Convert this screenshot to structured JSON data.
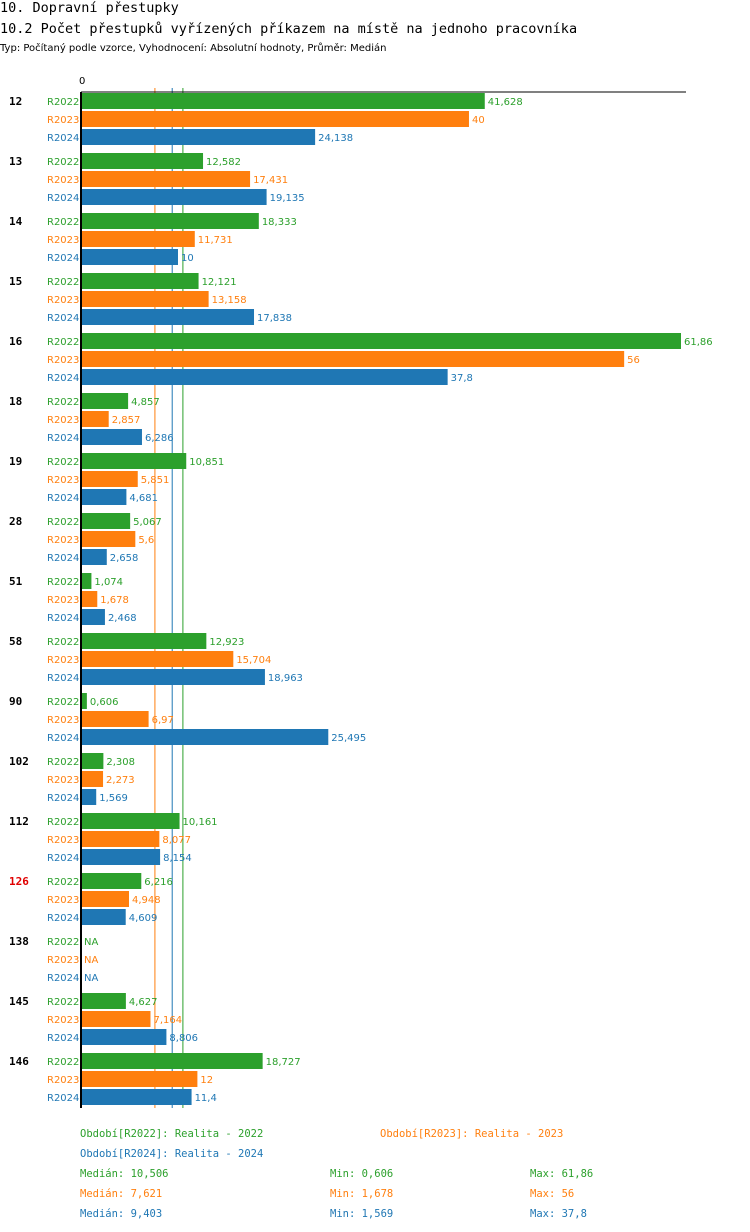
{
  "header": {
    "section": "10. Dopravní přestupky",
    "title": "10.2 Počet přestupků vyřízených příkazem na místě na jednoho pracovníka",
    "subtitle": "Typ: Počítaný podle vzorce, Vyhodnocení: Absolutní hodnoty, Průměr: Medián"
  },
  "chart_data": {
    "type": "bar",
    "orientation": "horizontal",
    "axis_zero_label": "0",
    "xlim": [
      0,
      61.86
    ],
    "series_colors": [
      "#2ca02c",
      "#ff7f0e",
      "#1f77b4"
    ],
    "series": [
      {
        "name": "R2022",
        "color": "#2ca02c",
        "median": 10.506
      },
      {
        "name": "R2023",
        "color": "#ff7f0e",
        "median": 7.621
      },
      {
        "name": "R2024",
        "color": "#1f77b4",
        "median": 9.403
      }
    ],
    "groups": [
      {
        "id": "12",
        "highlight": false,
        "rows": [
          {
            "series": "R2022",
            "value": 41.628,
            "label": "41,628"
          },
          {
            "series": "R2023",
            "value": 40,
            "label": "40"
          },
          {
            "series": "R2024",
            "value": 24.138,
            "label": "24,138"
          }
        ]
      },
      {
        "id": "13",
        "highlight": false,
        "rows": [
          {
            "series": "R2022",
            "value": 12.582,
            "label": "12,582"
          },
          {
            "series": "R2023",
            "value": 17.431,
            "label": "17,431"
          },
          {
            "series": "R2024",
            "value": 19.135,
            "label": "19,135"
          }
        ]
      },
      {
        "id": "14",
        "highlight": false,
        "rows": [
          {
            "series": "R2022",
            "value": 18.333,
            "label": "18,333"
          },
          {
            "series": "R2023",
            "value": 11.731,
            "label": "11,731"
          },
          {
            "series": "R2024",
            "value": 10,
            "label": "10"
          }
        ]
      },
      {
        "id": "15",
        "highlight": false,
        "rows": [
          {
            "series": "R2022",
            "value": 12.121,
            "label": "12,121"
          },
          {
            "series": "R2023",
            "value": 13.158,
            "label": "13,158"
          },
          {
            "series": "R2024",
            "value": 17.838,
            "label": "17,838"
          }
        ]
      },
      {
        "id": "16",
        "highlight": false,
        "rows": [
          {
            "series": "R2022",
            "value": 61.86,
            "label": "61,86"
          },
          {
            "series": "R2023",
            "value": 56,
            "label": "56"
          },
          {
            "series": "R2024",
            "value": 37.8,
            "label": "37,8"
          }
        ]
      },
      {
        "id": "18",
        "highlight": false,
        "rows": [
          {
            "series": "R2022",
            "value": 4.857,
            "label": "4,857"
          },
          {
            "series": "R2023",
            "value": 2.857,
            "label": "2,857"
          },
          {
            "series": "R2024",
            "value": 6.286,
            "label": "6,286"
          }
        ]
      },
      {
        "id": "19",
        "highlight": false,
        "rows": [
          {
            "series": "R2022",
            "value": 10.851,
            "label": "10,851"
          },
          {
            "series": "R2023",
            "value": 5.851,
            "label": "5,851"
          },
          {
            "series": "R2024",
            "value": 4.681,
            "label": "4,681"
          }
        ]
      },
      {
        "id": "28",
        "highlight": false,
        "rows": [
          {
            "series": "R2022",
            "value": 5.067,
            "label": "5,067"
          },
          {
            "series": "R2023",
            "value": 5.6,
            "label": "5,6"
          },
          {
            "series": "R2024",
            "value": 2.658,
            "label": "2,658"
          }
        ]
      },
      {
        "id": "51",
        "highlight": false,
        "rows": [
          {
            "series": "R2022",
            "value": 1.074,
            "label": "1,074"
          },
          {
            "series": "R2023",
            "value": 1.678,
            "label": "1,678"
          },
          {
            "series": "R2024",
            "value": 2.468,
            "label": "2,468"
          }
        ]
      },
      {
        "id": "58",
        "highlight": false,
        "rows": [
          {
            "series": "R2022",
            "value": 12.923,
            "label": "12,923"
          },
          {
            "series": "R2023",
            "value": 15.704,
            "label": "15,704"
          },
          {
            "series": "R2024",
            "value": 18.963,
            "label": "18,963"
          }
        ]
      },
      {
        "id": "90",
        "highlight": false,
        "rows": [
          {
            "series": "R2022",
            "value": 0.606,
            "label": "0,606"
          },
          {
            "series": "R2023",
            "value": 6.97,
            "label": "6,97"
          },
          {
            "series": "R2024",
            "value": 25.495,
            "label": "25,495"
          }
        ]
      },
      {
        "id": "102",
        "highlight": false,
        "rows": [
          {
            "series": "R2022",
            "value": 2.308,
            "label": "2,308"
          },
          {
            "series": "R2023",
            "value": 2.273,
            "label": "2,273"
          },
          {
            "series": "R2024",
            "value": 1.569,
            "label": "1,569"
          }
        ]
      },
      {
        "id": "112",
        "highlight": false,
        "rows": [
          {
            "series": "R2022",
            "value": 10.161,
            "label": "10,161"
          },
          {
            "series": "R2023",
            "value": 8.077,
            "label": "8,077"
          },
          {
            "series": "R2024",
            "value": 8.154,
            "label": "8,154"
          }
        ]
      },
      {
        "id": "126",
        "highlight": true,
        "rows": [
          {
            "series": "R2022",
            "value": 6.216,
            "label": "6,216"
          },
          {
            "series": "R2023",
            "value": 4.948,
            "label": "4,948"
          },
          {
            "series": "R2024",
            "value": 4.609,
            "label": "4,609"
          }
        ]
      },
      {
        "id": "138",
        "highlight": false,
        "rows": [
          {
            "series": "R2022",
            "value": null,
            "label": "NA"
          },
          {
            "series": "R2023",
            "value": null,
            "label": "NA"
          },
          {
            "series": "R2024",
            "value": null,
            "label": "NA"
          }
        ]
      },
      {
        "id": "145",
        "highlight": false,
        "rows": [
          {
            "series": "R2022",
            "value": 4.627,
            "label": "4,627"
          },
          {
            "series": "R2023",
            "value": 7.164,
            "label": "7,164"
          },
          {
            "series": "R2024",
            "value": 8.806,
            "label": "8,806"
          }
        ]
      },
      {
        "id": "146",
        "highlight": false,
        "rows": [
          {
            "series": "R2022",
            "value": 18.727,
            "label": "18,727"
          },
          {
            "series": "R2023",
            "value": 12,
            "label": "12"
          },
          {
            "series": "R2024",
            "value": 11.4,
            "label": "11,4"
          }
        ]
      }
    ]
  },
  "legend": {
    "r2022": "Období[R2022]: Realita - 2022",
    "r2023": "Období[R2023]: Realita - 2023",
    "r2024": "Období[R2024]: Realita - 2024"
  },
  "stats": {
    "r2022": {
      "median": "Medián: 10,506",
      "min": "Min: 0,606",
      "max": "Max: 61,86"
    },
    "r2023": {
      "median": "Medián: 7,621",
      "min": "Min: 1,678",
      "max": "Max: 56"
    },
    "r2024": {
      "median": "Medián: 9,403",
      "min": "Min: 1,569",
      "max": "Max: 37,8"
    }
  }
}
